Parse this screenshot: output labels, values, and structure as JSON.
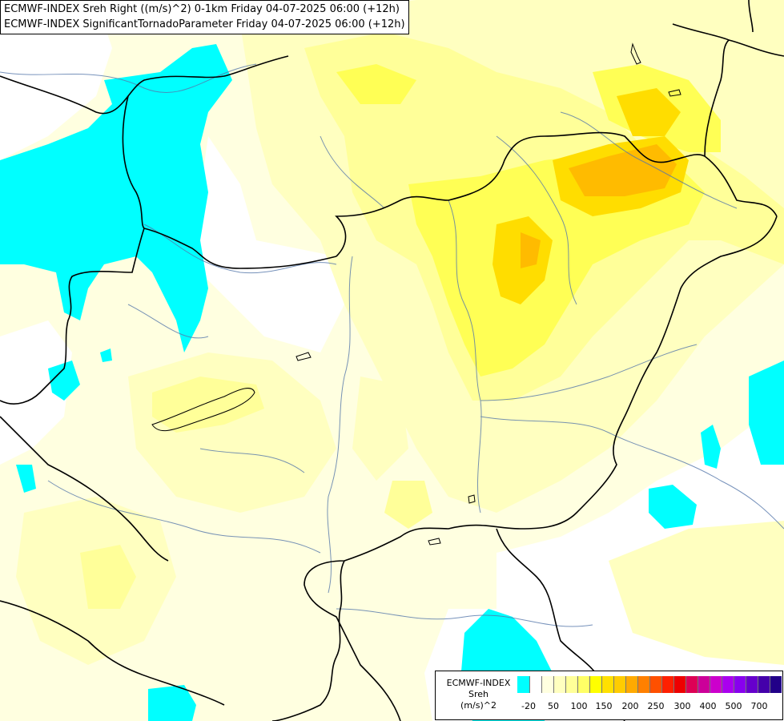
{
  "title": {
    "line1": "ECMWF-INDEX Sreh Right ((m/s)^2) 0-1km Friday 04-07-2025 06:00 (+12h)",
    "line2": "ECMWF-INDEX SignificantTornadoParameter Friday 04-07-2025 06:00 (+12h)"
  },
  "legend": {
    "model": "ECMWF-INDEX",
    "parameter": "Sreh",
    "unit": "(m/s)^2",
    "colors": [
      "#00ffff",
      "#ffffff",
      "#ffffe0",
      "#ffffc0",
      "#ffff99",
      "#ffff66",
      "#ffff00",
      "#ffe000",
      "#ffcc00",
      "#ffaa00",
      "#ff8000",
      "#ff5000",
      "#ff2000",
      "#ee0000",
      "#dd0055",
      "#cc0099",
      "#cc00cc",
      "#aa00ee",
      "#8800ee",
      "#6600cc",
      "#4400aa",
      "#220088"
    ],
    "tick_labels": [
      "-20",
      "50",
      "100",
      "150",
      "200",
      "250",
      "300",
      "400",
      "500",
      "700"
    ]
  }
}
